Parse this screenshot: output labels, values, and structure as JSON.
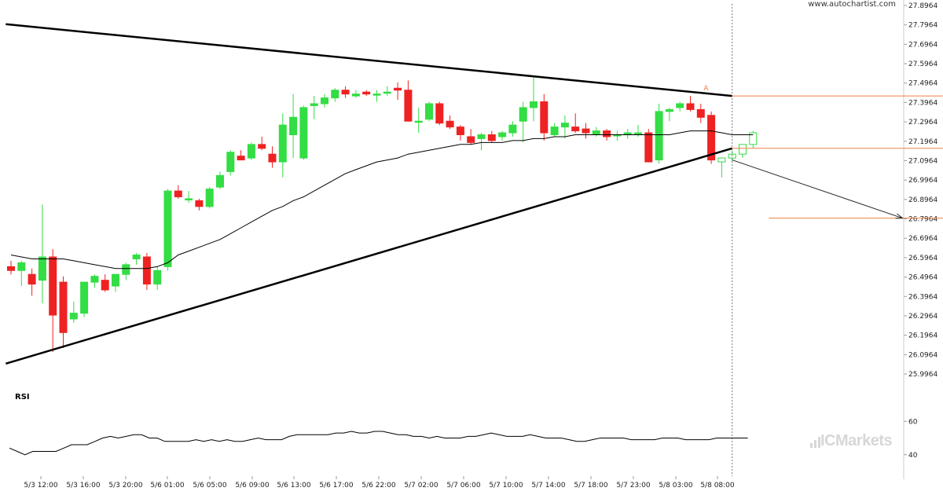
{
  "watermark": "www.autochartist.com",
  "brand": "ICMarkets",
  "colors": {
    "up": "#33dd44",
    "down": "#ee2222",
    "ma": "#000000",
    "level": "#f08040",
    "grid": "#dddddd"
  },
  "chart_data": {
    "type": "candlestick",
    "title": "",
    "yticks": [
      "27.8964",
      "27.7964",
      "27.6964",
      "27.5964",
      "27.4964",
      "27.3964",
      "27.2964",
      "27.1964",
      "27.0964",
      "26.9964",
      "26.8964",
      "26.7964",
      "26.6964",
      "26.5964",
      "26.4964",
      "26.3964",
      "26.2964",
      "26.1964",
      "26.0964",
      "25.9964"
    ],
    "ylim": [
      25.9964,
      27.8964
    ],
    "xticks": [
      "5/3 12:00",
      "5/3 16:00",
      "5/3 20:00",
      "5/6 01:00",
      "5/6 05:00",
      "5/6 09:00",
      "5/6 13:00",
      "5/6 17:00",
      "5/6 22:00",
      "5/7 02:00",
      "5/7 06:00",
      "5/7 10:00",
      "5/7 14:00",
      "5/7 18:00",
      "5/7 23:00",
      "5/8 03:00",
      "5/8 08:00"
    ],
    "candles": [
      [
        26.55,
        26.58,
        26.51,
        26.53
      ],
      [
        26.53,
        26.58,
        26.45,
        26.57
      ],
      [
        26.51,
        26.54,
        26.4,
        26.46
      ],
      [
        26.48,
        26.87,
        26.36,
        26.6
      ],
      [
        26.6,
        26.64,
        26.11,
        26.3
      ],
      [
        26.47,
        26.5,
        26.13,
        26.21
      ],
      [
        26.28,
        26.37,
        26.26,
        26.31
      ],
      [
        26.31,
        26.46,
        26.29,
        26.47
      ],
      [
        26.47,
        26.51,
        26.44,
        26.5
      ],
      [
        26.48,
        26.51,
        26.42,
        26.43
      ],
      [
        26.45,
        26.51,
        26.42,
        26.51
      ],
      [
        26.51,
        26.57,
        26.48,
        26.56
      ],
      [
        26.59,
        26.62,
        26.56,
        26.61
      ],
      [
        26.6,
        26.62,
        26.43,
        26.46
      ],
      [
        26.46,
        26.55,
        26.43,
        26.53
      ],
      [
        26.55,
        26.95,
        26.53,
        26.94
      ],
      [
        26.94,
        26.97,
        26.9,
        26.91
      ],
      [
        26.9,
        26.94,
        26.88,
        26.9
      ],
      [
        26.89,
        26.9,
        26.84,
        26.86
      ],
      [
        26.86,
        26.96,
        26.85,
        26.95
      ],
      [
        26.96,
        27.04,
        26.95,
        27.02
      ],
      [
        27.04,
        27.15,
        27.02,
        27.14
      ],
      [
        27.12,
        27.15,
        27.1,
        27.1
      ],
      [
        27.11,
        27.19,
        27.1,
        27.18
      ],
      [
        27.18,
        27.22,
        27.15,
        27.16
      ],
      [
        27.13,
        27.17,
        27.06,
        27.09
      ],
      [
        27.09,
        27.34,
        27.01,
        27.28
      ],
      [
        27.23,
        27.44,
        27.11,
        27.32
      ],
      [
        27.11,
        27.38,
        27.1,
        27.37
      ],
      [
        27.38,
        27.43,
        27.31,
        27.39
      ],
      [
        27.39,
        27.44,
        27.37,
        27.42
      ],
      [
        27.42,
        27.47,
        27.4,
        27.46
      ],
      [
        27.46,
        27.48,
        27.42,
        27.44
      ],
      [
        27.43,
        27.46,
        27.42,
        27.44
      ],
      [
        27.45,
        27.46,
        27.43,
        27.44
      ],
      [
        27.44,
        27.46,
        27.4,
        27.44
      ],
      [
        27.45,
        27.48,
        27.43,
        27.45
      ],
      [
        27.47,
        27.5,
        27.41,
        27.46
      ],
      [
        27.46,
        27.51,
        27.3,
        27.3
      ],
      [
        27.3,
        27.37,
        27.24,
        27.3
      ],
      [
        27.31,
        27.4,
        27.3,
        27.39
      ],
      [
        27.39,
        27.4,
        27.28,
        27.29
      ],
      [
        27.3,
        27.33,
        27.26,
        27.27
      ],
      [
        27.27,
        27.28,
        27.2,
        27.23
      ],
      [
        27.22,
        27.26,
        27.18,
        27.19
      ],
      [
        27.21,
        27.24,
        27.15,
        27.23
      ],
      [
        27.23,
        27.25,
        27.19,
        27.2
      ],
      [
        27.22,
        27.25,
        27.2,
        27.24
      ],
      [
        27.24,
        27.3,
        27.22,
        27.28
      ],
      [
        27.3,
        27.4,
        27.19,
        27.37
      ],
      [
        27.37,
        27.53,
        27.3,
        27.4
      ],
      [
        27.4,
        27.44,
        27.2,
        27.24
      ],
      [
        27.23,
        27.29,
        27.22,
        27.27
      ],
      [
        27.27,
        27.33,
        27.21,
        27.29
      ],
      [
        27.27,
        27.34,
        27.24,
        27.25
      ],
      [
        27.26,
        27.29,
        27.21,
        27.24
      ],
      [
        27.23,
        27.27,
        27.22,
        27.25
      ],
      [
        27.25,
        27.26,
        27.2,
        27.22
      ],
      [
        27.23,
        27.25,
        27.2,
        27.23
      ],
      [
        27.23,
        27.26,
        27.21,
        27.24
      ],
      [
        27.24,
        27.28,
        27.22,
        27.24
      ],
      [
        27.24,
        27.26,
        27.09,
        27.09
      ],
      [
        27.1,
        27.39,
        27.08,
        27.35
      ],
      [
        27.35,
        27.37,
        27.3,
        27.36
      ],
      [
        27.37,
        27.4,
        27.35,
        27.39
      ],
      [
        27.39,
        27.43,
        27.35,
        27.36
      ],
      [
        27.36,
        27.39,
        27.29,
        27.32
      ],
      [
        27.33,
        27.35,
        27.08,
        27.1
      ],
      [
        27.09,
        27.1,
        27.01,
        27.11
      ],
      [
        27.11,
        27.15,
        27.09,
        27.13
      ],
      [
        27.13,
        27.18,
        27.11,
        27.18
      ],
      [
        27.18,
        27.25,
        27.16,
        27.24
      ]
    ],
    "ma": [
      26.61,
      26.6,
      26.59,
      26.59,
      26.59,
      26.59,
      26.58,
      26.57,
      26.56,
      26.55,
      26.54,
      26.54,
      26.54,
      26.54,
      26.55,
      26.57,
      26.61,
      26.63,
      26.65,
      26.67,
      26.69,
      26.72,
      26.75,
      26.78,
      26.81,
      26.84,
      26.86,
      26.89,
      26.91,
      26.94,
      26.97,
      27.0,
      27.03,
      27.05,
      27.07,
      27.09,
      27.1,
      27.11,
      27.13,
      27.14,
      27.15,
      27.16,
      27.17,
      27.18,
      27.18,
      27.19,
      27.19,
      27.19,
      27.2,
      27.2,
      27.21,
      27.21,
      27.22,
      27.22,
      27.23,
      27.23,
      27.23,
      27.23,
      27.23,
      27.23,
      27.23,
      27.23,
      27.23,
      27.23,
      27.24,
      27.25,
      27.25,
      27.25,
      27.24,
      27.23,
      27.23,
      27.23
    ],
    "trendlines": [
      {
        "from": [
          -0.5,
          27.8
        ],
        "to": [
          69.0,
          27.43
        ]
      },
      {
        "from": [
          -0.5,
          26.05
        ],
        "to": [
          69.0,
          27.16
        ]
      }
    ],
    "levels": [
      {
        "value": 27.43,
        "from": 69.0,
        "to": 92.0
      },
      {
        "value": 27.16,
        "from": 69.0,
        "to": 92.0
      },
      {
        "value": 26.8,
        "from": 72.5,
        "to": 92.0
      }
    ],
    "forecast_arrow": {
      "from": [
        69.0,
        27.1
      ],
      "to": [
        85.3,
        26.8
      ]
    },
    "marker": {
      "label": "A",
      "value": 27.45,
      "index": 66.5
    },
    "vline_index": 69.0,
    "rsi_label": "RSI",
    "rsi_ticks": [
      "60",
      "40"
    ],
    "rsi": [
      44,
      42,
      40,
      42,
      42,
      42,
      42,
      44,
      46,
      46,
      46,
      48,
      50,
      51,
      50,
      51,
      52,
      52,
      50,
      50,
      48,
      48,
      48,
      48,
      49,
      48,
      49,
      48,
      49,
      48,
      48,
      49,
      50,
      49,
      49,
      49,
      51,
      52,
      52,
      52,
      52,
      52,
      53,
      53,
      54,
      53,
      53,
      54,
      54,
      53,
      52,
      52,
      51,
      51,
      50,
      51,
      50,
      50,
      50,
      51,
      51,
      52,
      53,
      52,
      51,
      51,
      51,
      52,
      51,
      50,
      50,
      50,
      49,
      48,
      48,
      49,
      50,
      50,
      50,
      50,
      49,
      49,
      49,
      49,
      50,
      50,
      50,
      49,
      49,
      49,
      49,
      50,
      50,
      50,
      50,
      50
    ]
  }
}
